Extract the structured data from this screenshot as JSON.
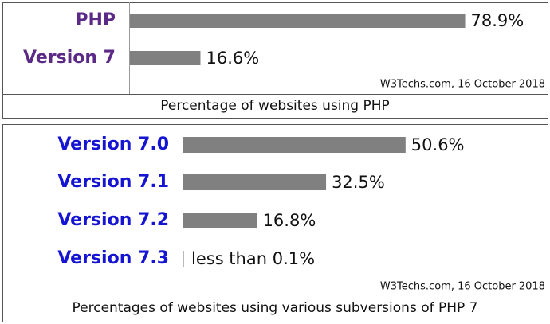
{
  "chart_data": [
    {
      "type": "bar",
      "orientation": "horizontal",
      "title": "Percentage of websites using PHP",
      "source": "W3Techs.com, 16 October 2018",
      "categories": [
        "PHP",
        "Version 7"
      ],
      "values": [
        78.9,
        16.6
      ],
      "value_labels": [
        "78.9%",
        "16.6%"
      ],
      "xlim": [
        0,
        100
      ],
      "color": "#808080",
      "category_color": "#5b2a86"
    },
    {
      "type": "bar",
      "orientation": "horizontal",
      "title": "Percentages of websites using various subversions of PHP 7",
      "source": "W3Techs.com, 16 October 2018",
      "categories": [
        "Version 7.0",
        "Version 7.1",
        "Version 7.2",
        "Version 7.3"
      ],
      "values": [
        50.6,
        32.5,
        16.8,
        0.1
      ],
      "value_labels": [
        "50.6%",
        "32.5%",
        "16.8%",
        "less than 0.1%"
      ],
      "xlim": [
        0,
        100
      ],
      "color": "#808080",
      "category_color": "#1414d2"
    }
  ]
}
